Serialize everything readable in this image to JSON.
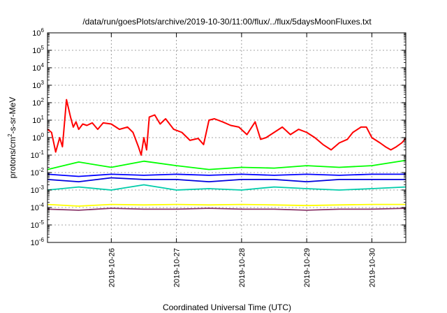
{
  "chart_data": {
    "type": "line",
    "title": "/data/run/goesPlots/archive/2019-10-30/11:00/flux/../flux/5daysMoonFluxes.txt",
    "xlabel": "Coordinated Universal Time (UTC)",
    "ylabel": {
      "base": "protons/cm",
      "sup": "2",
      "rest": "-s-sr-MeV"
    },
    "y_scale": "log",
    "ylim": [
      1e-06,
      1000000.0
    ],
    "y_ticks": [
      {
        "value": 1e-06,
        "base": "10",
        "exp": "-6"
      },
      {
        "value": 1e-05,
        "base": "10",
        "exp": "-5"
      },
      {
        "value": 0.0001,
        "base": "10",
        "exp": "-4"
      },
      {
        "value": 0.001,
        "base": "10",
        "exp": "-3"
      },
      {
        "value": 0.01,
        "base": "10",
        "exp": "-2"
      },
      {
        "value": 0.1,
        "base": "10",
        "exp": "-1"
      },
      {
        "value": 1,
        "base": "10",
        "exp": "0"
      },
      {
        "value": 10.0,
        "base": "10",
        "exp": "1"
      },
      {
        "value": 100.0,
        "base": "10",
        "exp": "2"
      },
      {
        "value": 1000.0,
        "base": "10",
        "exp": "3"
      },
      {
        "value": 10000.0,
        "base": "10",
        "exp": "4"
      },
      {
        "value": 100000.0,
        "base": "10",
        "exp": "5"
      },
      {
        "value": 1000000.0,
        "base": "10",
        "exp": "6"
      }
    ],
    "xlim": [
      "2019-10-25 00:30",
      "2019-10-30 12:30"
    ],
    "x_ticks": [
      {
        "value": "2019-10-26 00:00",
        "label": "2019-10-26"
      },
      {
        "value": "2019-10-27 00:00",
        "label": "2019-10-27"
      },
      {
        "value": "2019-10-28 00:00",
        "label": "2019-10-28"
      },
      {
        "value": "2019-10-29 00:00",
        "label": "2019-10-29"
      },
      {
        "value": "2019-10-30 00:00",
        "label": "2019-10-30"
      }
    ],
    "grid": true,
    "series": [
      {
        "color": "#ff0000",
        "x": [
          "2019-10-25 00:30",
          "2019-10-25 02:00",
          "2019-10-25 03:30",
          "2019-10-25 05:00",
          "2019-10-25 06:00",
          "2019-10-25 07:30",
          "2019-10-25 09:00",
          "2019-10-25 10:00",
          "2019-10-25 11:00",
          "2019-10-25 12:00",
          "2019-10-25 13:30",
          "2019-10-25 15:00",
          "2019-10-25 17:00",
          "2019-10-25 19:00",
          "2019-10-25 21:00",
          "2019-10-26 00:00",
          "2019-10-26 03:00",
          "2019-10-26 06:00",
          "2019-10-26 08:00",
          "2019-10-26 10:00",
          "2019-10-26 11:00",
          "2019-10-26 12:00",
          "2019-10-26 13:00",
          "2019-10-26 14:00",
          "2019-10-26 16:00",
          "2019-10-26 18:00",
          "2019-10-26 20:00",
          "2019-10-26 23:00",
          "2019-10-27 02:00",
          "2019-10-27 05:00",
          "2019-10-27 08:00",
          "2019-10-27 10:00",
          "2019-10-27 12:00",
          "2019-10-27 14:00",
          "2019-10-27 17:00",
          "2019-10-27 20:00",
          "2019-10-27 23:00",
          "2019-10-28 02:00",
          "2019-10-28 05:00",
          "2019-10-28 07:00",
          "2019-10-28 09:00",
          "2019-10-28 12:00",
          "2019-10-28 15:00",
          "2019-10-28 18:00",
          "2019-10-28 21:00",
          "2019-10-29 00:00",
          "2019-10-29 03:00",
          "2019-10-29 06:00",
          "2019-10-29 09:00",
          "2019-10-29 12:00",
          "2019-10-29 15:00",
          "2019-10-29 17:00",
          "2019-10-29 20:00",
          "2019-10-29 22:00",
          "2019-10-30 00:00",
          "2019-10-30 03:00",
          "2019-10-30 05:00",
          "2019-10-30 07:00",
          "2019-10-30 09:00",
          "2019-10-30 11:00",
          "2019-10-30 12:30"
        ],
        "values": [
          3,
          2,
          0.15,
          1,
          0.3,
          150,
          15,
          4,
          8,
          3,
          6,
          5,
          7,
          3,
          7,
          6,
          3,
          4,
          2,
          0.3,
          0.1,
          1,
          0.2,
          15,
          20,
          6,
          12,
          3,
          2,
          0.7,
          0.9,
          0.4,
          10,
          12,
          8,
          5,
          4,
          1.5,
          8,
          0.8,
          1,
          2,
          4,
          1.5,
          3,
          2,
          1,
          0.4,
          0.2,
          0.5,
          0.8,
          2,
          4,
          4,
          1,
          0.5,
          0.3,
          0.2,
          0.3,
          0.5,
          0.9
        ]
      },
      {
        "color": "#00ff00",
        "x": [
          "2019-10-25 00:30",
          "2019-10-25 12:00",
          "2019-10-26 00:00",
          "2019-10-26 12:00",
          "2019-10-27 00:00",
          "2019-10-27 12:00",
          "2019-10-28 00:00",
          "2019-10-28 12:00",
          "2019-10-29 00:00",
          "2019-10-29 12:00",
          "2019-10-30 00:00",
          "2019-10-30 12:30"
        ],
        "values": [
          0.015,
          0.04,
          0.02,
          0.045,
          0.025,
          0.015,
          0.02,
          0.018,
          0.025,
          0.02,
          0.025,
          0.05
        ]
      },
      {
        "color": "#0000ff",
        "x": [
          "2019-10-25 00:30",
          "2019-10-25 12:00",
          "2019-10-26 00:00",
          "2019-10-26 12:00",
          "2019-10-27 00:00",
          "2019-10-27 12:00",
          "2019-10-28 00:00",
          "2019-10-28 12:00",
          "2019-10-29 00:00",
          "2019-10-29 12:00",
          "2019-10-30 00:00",
          "2019-10-30 12:30"
        ],
        "values": [
          0.008,
          0.006,
          0.008,
          0.007,
          0.008,
          0.007,
          0.008,
          0.007,
          0.008,
          0.007,
          0.008,
          0.008
        ]
      },
      {
        "color": "#0000dd",
        "x": [
          "2019-10-25 00:30",
          "2019-10-25 12:00",
          "2019-10-26 00:00",
          "2019-10-26 12:00",
          "2019-10-27 00:00",
          "2019-10-27 12:00",
          "2019-10-28 00:00",
          "2019-10-28 12:00",
          "2019-10-29 00:00",
          "2019-10-29 12:00",
          "2019-10-30 00:00",
          "2019-10-30 12:30"
        ],
        "values": [
          0.004,
          0.003,
          0.005,
          0.004,
          0.004,
          0.003,
          0.004,
          0.004,
          0.003,
          0.004,
          0.004,
          0.004
        ]
      },
      {
        "color": "#00ccaa",
        "x": [
          "2019-10-25 00:30",
          "2019-10-25 12:00",
          "2019-10-26 00:00",
          "2019-10-26 12:00",
          "2019-10-27 00:00",
          "2019-10-27 12:00",
          "2019-10-28 00:00",
          "2019-10-28 12:00",
          "2019-10-29 00:00",
          "2019-10-29 12:00",
          "2019-10-30 00:00",
          "2019-10-30 12:30"
        ],
        "values": [
          0.001,
          0.0015,
          0.001,
          0.002,
          0.001,
          0.0012,
          0.001,
          0.0015,
          0.0012,
          0.001,
          0.0012,
          0.0015
        ]
      },
      {
        "color": "#ffff00",
        "x": [
          "2019-10-25 00:30",
          "2019-10-25 12:00",
          "2019-10-26 00:00",
          "2019-10-26 12:00",
          "2019-10-27 00:00",
          "2019-10-27 12:00",
          "2019-10-28 00:00",
          "2019-10-28 12:00",
          "2019-10-29 00:00",
          "2019-10-29 12:00",
          "2019-10-30 00:00",
          "2019-10-30 12:30"
        ],
        "values": [
          0.00015,
          0.00012,
          0.00015,
          0.00014,
          0.00015,
          0.00014,
          0.00015,
          0.00014,
          0.00013,
          0.00014,
          0.00015,
          0.00015
        ]
      },
      {
        "color": "#883366",
        "x": [
          "2019-10-25 00:30",
          "2019-10-25 12:00",
          "2019-10-26 00:00",
          "2019-10-26 12:00",
          "2019-10-27 00:00",
          "2019-10-27 12:00",
          "2019-10-28 00:00",
          "2019-10-28 12:00",
          "2019-10-29 00:00",
          "2019-10-29 12:00",
          "2019-10-30 00:00",
          "2019-10-30 12:30"
        ],
        "values": [
          8e-05,
          7e-05,
          9e-05,
          8e-05,
          8e-05,
          9e-05,
          8e-05,
          8e-05,
          7e-05,
          8e-05,
          8e-05,
          9e-05
        ]
      }
    ]
  }
}
